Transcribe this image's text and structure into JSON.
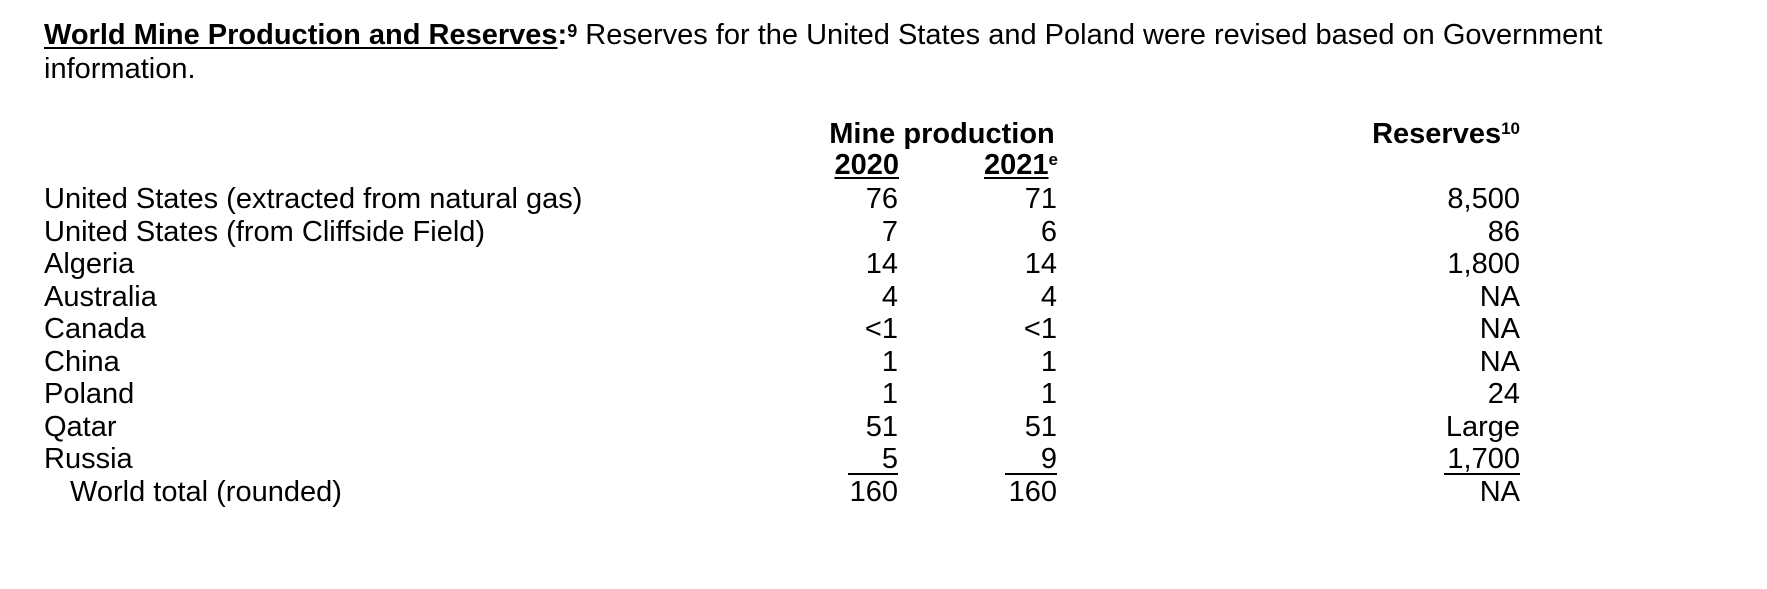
{
  "intro": {
    "heading": "World Mine Production and Reserves",
    "colon": ":",
    "footnote": "9",
    "text": " Reserves for the United States and Poland were revised based on Government information."
  },
  "table": {
    "header_group": "Mine production",
    "year1": "2020",
    "year2": "2021",
    "year2_sup": "e",
    "reserves": "Reserves",
    "reserves_sup": "10",
    "rows": [
      {
        "country": "United States (extracted from natural gas)",
        "y2020": "76",
        "y2021": "71",
        "reserves": "8,500"
      },
      {
        "country": "United States (from Cliffside Field)",
        "y2020": "7",
        "y2021": "6",
        "reserves": "86"
      },
      {
        "country": "Algeria",
        "y2020": "14",
        "y2021": "14",
        "reserves": "1,800"
      },
      {
        "country": "Australia",
        "y2020": "4",
        "y2021": "4",
        "reserves": "NA"
      },
      {
        "country": "Canada",
        "y2020": "<1",
        "y2021": "<1",
        "reserves": "NA"
      },
      {
        "country": "China",
        "y2020": "1",
        "y2021": "1",
        "reserves": "NA"
      },
      {
        "country": "Poland",
        "y2020": "1",
        "y2021": "1",
        "reserves": "24"
      },
      {
        "country": "Qatar",
        "y2020": "51",
        "y2021": "51",
        "reserves": "Large"
      },
      {
        "country": "Russia",
        "y2020": "5",
        "y2021": "9",
        "reserves": "1,700"
      }
    ],
    "total": {
      "country": "World total (rounded)",
      "y2020": "160",
      "y2021": "160",
      "reserves": "NA"
    }
  }
}
